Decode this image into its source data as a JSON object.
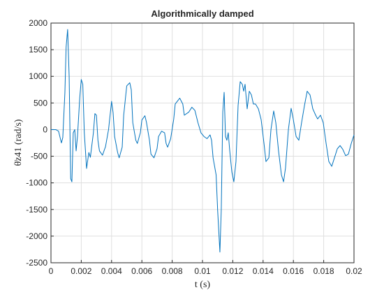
{
  "chart_data": {
    "type": "line",
    "title": "Algorithmically damped",
    "x_label": "t (s)",
    "y_label": "θ̈z41 (rad/s)",
    "x": [
      0,
      0.00032,
      0.0005,
      0.00069,
      0.00078,
      0.00092,
      0.001,
      0.0011,
      0.0012,
      0.0013,
      0.00138,
      0.00147,
      0.00157,
      0.00166,
      0.00175,
      0.0019,
      0.002,
      0.0021,
      0.0022,
      0.00235,
      0.0025,
      0.0026,
      0.0028,
      0.0029,
      0.003,
      0.0031,
      0.0032,
      0.0034,
      0.0035,
      0.0036,
      0.0038,
      0.004,
      0.0041,
      0.0042,
      0.0044,
      0.0045,
      0.0047,
      0.0048,
      0.005,
      0.0052,
      0.0053,
      0.0054,
      0.0056,
      0.0057,
      0.0059,
      0.006,
      0.0062,
      0.0063,
      0.0065,
      0.0066,
      0.0068,
      0.007,
      0.0071,
      0.0073,
      0.0075,
      0.0076,
      0.0077,
      0.0079,
      0.0081,
      0.0082,
      0.0085,
      0.0087,
      0.0088,
      0.0091,
      0.0093,
      0.0095,
      0.0097,
      0.0099,
      0.0101,
      0.0103,
      0.0105,
      0.0106,
      0.0107,
      0.0109,
      0.011,
      0.01115,
      0.01124,
      0.01134,
      0.01143,
      0.01152,
      0.01161,
      0.0117,
      0.0118,
      0.01194,
      0.01207,
      0.01221,
      0.01235,
      0.01249,
      0.01263,
      0.01272,
      0.01281,
      0.01295,
      0.01309,
      0.01323,
      0.01336,
      0.0135,
      0.01369,
      0.01387,
      0.01406,
      0.01419,
      0.01438,
      0.01452,
      0.0147,
      0.01484,
      0.01502,
      0.01521,
      0.01535,
      0.01548,
      0.01567,
      0.01585,
      0.01599,
      0.01618,
      0.01636,
      0.01654,
      0.01673,
      0.01691,
      0.0171,
      0.01728,
      0.01747,
      0.0176,
      0.01779,
      0.01797,
      0.01816,
      0.01834,
      0.01853,
      0.01871,
      0.0189,
      0.01908,
      0.01926,
      0.01945,
      0.01963,
      0.01982,
      0.02
    ],
    "values": [
      0,
      0,
      -30,
      -250,
      -150,
      700,
      1550,
      1880,
      1000,
      -920,
      -980,
      -60,
      0,
      -400,
      -130,
      600,
      940,
      850,
      -60,
      -730,
      -430,
      -520,
      -60,
      300,
      270,
      -200,
      -400,
      -480,
      -400,
      -320,
      0,
      530,
      320,
      -130,
      -430,
      -530,
      -330,
      270,
      820,
      880,
      750,
      130,
      -200,
      -260,
      -60,
      180,
      260,
      140,
      -200,
      -460,
      -530,
      -360,
      -130,
      -30,
      -60,
      -260,
      -330,
      -170,
      190,
      480,
      590,
      480,
      270,
      330,
      420,
      360,
      130,
      -60,
      -130,
      -170,
      -100,
      -200,
      -530,
      -850,
      -1510,
      -2300,
      -1500,
      330,
      700,
      -130,
      -200,
      -60,
      -400,
      -800,
      -980,
      -600,
      450,
      900,
      850,
      720,
      850,
      390,
      720,
      650,
      480,
      480,
      390,
      190,
      -260,
      -600,
      -530,
      0,
      350,
      130,
      -400,
      -850,
      -980,
      -720,
      0,
      400,
      200,
      -130,
      -200,
      130,
      450,
      720,
      650,
      390,
      270,
      200,
      270,
      130,
      -260,
      -600,
      -690,
      -530,
      -360,
      -300,
      -370,
      -490,
      -460,
      -260,
      -100
    ],
    "color": "#0072bd",
    "xlim": [
      0,
      0.02
    ],
    "xticks": [
      0,
      0.002,
      0.004,
      0.006,
      0.008,
      0.01,
      0.012,
      0.014,
      0.016,
      0.018,
      0.02
    ],
    "ylim": [
      -2500,
      2000
    ],
    "yticks": [
      -2500,
      -2000,
      -1500,
      -1000,
      -500,
      0,
      500,
      1000,
      1500,
      2000
    ],
    "grid": true
  }
}
